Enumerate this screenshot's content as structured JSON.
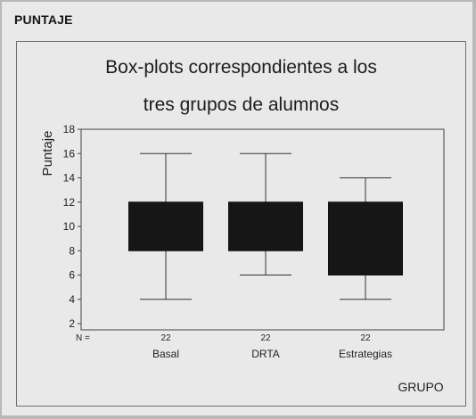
{
  "page": {
    "heading": "PUNTAJE"
  },
  "chart_data": {
    "type": "boxplot",
    "title": [
      "Box-plots correspondientes a los",
      "tres grupos de alumnos"
    ],
    "ylabel": "Puntaje",
    "xlabel": "GRUPO",
    "ylim": [
      2,
      18
    ],
    "yticks": [
      "2",
      "4",
      "6",
      "8",
      "10",
      "12",
      "14",
      "16",
      "18"
    ],
    "n_prefix": "N =",
    "categories": [
      "Basal",
      "DRTA",
      "Estrategias"
    ],
    "n": [
      "22",
      "22",
      "22"
    ],
    "boxes": [
      {
        "name": "Basal",
        "min": 4,
        "q1": 8,
        "q3": 12,
        "max": 16
      },
      {
        "name": "DRTA",
        "min": 6,
        "q1": 8,
        "q3": 12,
        "max": 16
      },
      {
        "name": "Estrategias",
        "min": 4,
        "q1": 6,
        "q3": 12,
        "max": 14
      }
    ],
    "box_color": "#161616",
    "grid": false
  }
}
